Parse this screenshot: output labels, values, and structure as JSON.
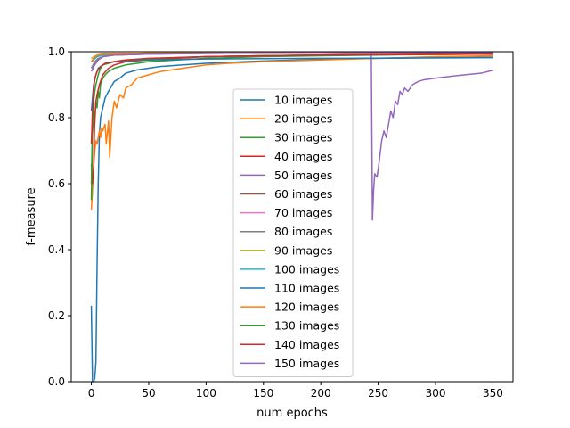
{
  "chart_data": {
    "type": "line",
    "title": "",
    "xlabel": "num epochs",
    "ylabel": "f-measure",
    "xlim": [
      -17.5,
      367.5
    ],
    "ylim": [
      0,
      1
    ],
    "xticks": [
      0,
      50,
      100,
      150,
      200,
      250,
      300,
      350
    ],
    "yticks": [
      0.0,
      0.2,
      0.4,
      0.6,
      0.8,
      1.0
    ],
    "xtick_labels": [
      "0",
      "50",
      "100",
      "150",
      "200",
      "250",
      "300",
      "350"
    ],
    "ytick_labels": [
      "0.0",
      "0.2",
      "0.4",
      "0.6",
      "0.8",
      "1.0"
    ],
    "grid": false,
    "legend_position": "center",
    "series": [
      {
        "name": "10 images",
        "color": "#1f77b4",
        "points": [
          [
            0,
            0.23
          ],
          [
            1,
            0.0
          ],
          [
            2,
            0.0
          ],
          [
            3,
            0.01
          ],
          [
            4,
            0.06
          ],
          [
            5,
            0.35
          ],
          [
            6,
            0.6
          ],
          [
            7,
            0.75
          ],
          [
            8,
            0.8
          ],
          [
            10,
            0.83
          ],
          [
            12,
            0.86
          ],
          [
            15,
            0.88
          ],
          [
            20,
            0.91
          ],
          [
            25,
            0.92
          ],
          [
            30,
            0.935
          ],
          [
            40,
            0.945
          ],
          [
            50,
            0.95
          ],
          [
            60,
            0.955
          ],
          [
            80,
            0.96
          ],
          [
            100,
            0.965
          ],
          [
            150,
            0.972
          ],
          [
            200,
            0.977
          ],
          [
            250,
            0.98
          ],
          [
            300,
            0.982
          ],
          [
            350,
            0.983
          ]
        ]
      },
      {
        "name": "20 images",
        "color": "#ff7f0e",
        "points": [
          [
            0,
            0.52
          ],
          [
            1,
            0.58
          ],
          [
            2,
            0.65
          ],
          [
            3,
            0.7
          ],
          [
            4,
            0.73
          ],
          [
            5,
            0.72
          ],
          [
            6,
            0.74
          ],
          [
            7,
            0.76
          ],
          [
            8,
            0.74
          ],
          [
            9,
            0.77
          ],
          [
            10,
            0.76
          ],
          [
            12,
            0.78
          ],
          [
            13,
            0.72
          ],
          [
            15,
            0.79
          ],
          [
            16,
            0.68
          ],
          [
            18,
            0.8
          ],
          [
            20,
            0.85
          ],
          [
            22,
            0.83
          ],
          [
            25,
            0.87
          ],
          [
            28,
            0.86
          ],
          [
            30,
            0.89
          ],
          [
            35,
            0.9
          ],
          [
            40,
            0.92
          ],
          [
            50,
            0.93
          ],
          [
            60,
            0.94
          ],
          [
            70,
            0.945
          ],
          [
            80,
            0.95
          ],
          [
            100,
            0.96
          ],
          [
            120,
            0.965
          ],
          [
            150,
            0.97
          ],
          [
            200,
            0.975
          ],
          [
            250,
            0.98
          ],
          [
            300,
            0.985
          ],
          [
            350,
            0.988
          ]
        ]
      },
      {
        "name": "30 images",
        "color": "#2ca02c",
        "points": [
          [
            0,
            0.55
          ],
          [
            1,
            0.75
          ],
          [
            2,
            0.82
          ],
          [
            3,
            0.78
          ],
          [
            4,
            0.85
          ],
          [
            5,
            0.83
          ],
          [
            6,
            0.88
          ],
          [
            7,
            0.86
          ],
          [
            8,
            0.9
          ],
          [
            10,
            0.92
          ],
          [
            12,
            0.93
          ],
          [
            15,
            0.94
          ],
          [
            20,
            0.95
          ],
          [
            25,
            0.955
          ],
          [
            30,
            0.96
          ],
          [
            40,
            0.965
          ],
          [
            50,
            0.97
          ],
          [
            75,
            0.975
          ],
          [
            100,
            0.98
          ],
          [
            150,
            0.985
          ],
          [
            200,
            0.988
          ],
          [
            250,
            0.99
          ],
          [
            300,
            0.992
          ],
          [
            350,
            0.993
          ]
        ]
      },
      {
        "name": "40 images",
        "color": "#d62728",
        "points": [
          [
            0,
            0.66
          ],
          [
            1,
            0.6
          ],
          [
            2,
            0.65
          ],
          [
            3,
            0.8
          ],
          [
            4,
            0.85
          ],
          [
            5,
            0.87
          ],
          [
            7,
            0.9
          ],
          [
            10,
            0.93
          ],
          [
            15,
            0.95
          ],
          [
            20,
            0.96
          ],
          [
            30,
            0.97
          ],
          [
            50,
            0.975
          ],
          [
            75,
            0.98
          ],
          [
            100,
            0.985
          ],
          [
            150,
            0.988
          ],
          [
            200,
            0.99
          ],
          [
            300,
            0.993
          ],
          [
            350,
            0.994
          ]
        ]
      },
      {
        "name": "50 images",
        "color": "#9467bd",
        "points": [
          [
            0,
            0.95
          ],
          [
            5,
            0.975
          ],
          [
            10,
            0.985
          ],
          [
            20,
            0.99
          ],
          [
            50,
            0.993
          ],
          [
            100,
            0.995
          ],
          [
            150,
            0.996
          ],
          [
            200,
            0.997
          ],
          [
            244,
            0.997
          ],
          [
            245,
            0.49
          ],
          [
            246,
            0.58
          ],
          [
            247,
            0.63
          ],
          [
            249,
            0.62
          ],
          [
            251,
            0.67
          ],
          [
            253,
            0.73
          ],
          [
            255,
            0.76
          ],
          [
            257,
            0.74
          ],
          [
            259,
            0.78
          ],
          [
            261,
            0.82
          ],
          [
            263,
            0.8
          ],
          [
            265,
            0.85
          ],
          [
            267,
            0.84
          ],
          [
            269,
            0.88
          ],
          [
            271,
            0.87
          ],
          [
            273,
            0.89
          ],
          [
            276,
            0.88
          ],
          [
            280,
            0.9
          ],
          [
            285,
            0.91
          ],
          [
            290,
            0.915
          ],
          [
            300,
            0.92
          ],
          [
            320,
            0.928
          ],
          [
            340,
            0.935
          ],
          [
            350,
            0.944
          ]
        ]
      },
      {
        "name": "60 images",
        "color": "#8c564b",
        "points": [
          [
            0,
            0.97
          ],
          [
            5,
            0.985
          ],
          [
            10,
            0.99
          ],
          [
            50,
            0.994
          ],
          [
            100,
            0.996
          ],
          [
            200,
            0.997
          ],
          [
            350,
            0.998
          ]
        ]
      },
      {
        "name": "70 images",
        "color": "#e377c2",
        "points": [
          [
            0,
            0.98
          ],
          [
            5,
            0.99
          ],
          [
            10,
            0.993
          ],
          [
            50,
            0.996
          ],
          [
            100,
            0.997
          ],
          [
            200,
            0.998
          ],
          [
            350,
            0.998
          ]
        ]
      },
      {
        "name": "80 images",
        "color": "#7f7f7f",
        "points": [
          [
            0,
            0.95
          ],
          [
            3,
            0.97
          ],
          [
            6,
            0.98
          ],
          [
            10,
            0.985
          ],
          [
            20,
            0.99
          ],
          [
            50,
            0.993
          ],
          [
            100,
            0.995
          ],
          [
            200,
            0.996
          ],
          [
            350,
            0.997
          ]
        ]
      },
      {
        "name": "90 images",
        "color": "#bcbd22",
        "points": [
          [
            0,
            0.98
          ],
          [
            5,
            0.99
          ],
          [
            10,
            0.993
          ],
          [
            50,
            0.996
          ],
          [
            100,
            0.997
          ],
          [
            200,
            0.998
          ],
          [
            350,
            0.999
          ]
        ]
      },
      {
        "name": "100 images",
        "color": "#17becf",
        "points": [
          [
            0,
            0.97
          ],
          [
            5,
            0.985
          ],
          [
            10,
            0.99
          ],
          [
            50,
            0.994
          ],
          [
            100,
            0.996
          ],
          [
            200,
            0.997
          ],
          [
            350,
            0.998
          ]
        ]
      },
      {
        "name": "110 images",
        "color": "#1f77b4",
        "points": [
          [
            0,
            0.82
          ],
          [
            2,
            0.9
          ],
          [
            4,
            0.93
          ],
          [
            6,
            0.95
          ],
          [
            10,
            0.96
          ],
          [
            20,
            0.97
          ],
          [
            50,
            0.975
          ],
          [
            100,
            0.978
          ],
          [
            200,
            0.98
          ],
          [
            350,
            0.982
          ]
        ]
      },
      {
        "name": "120 images",
        "color": "#ff7f0e",
        "points": [
          [
            0,
            0.97
          ],
          [
            3,
            0.985
          ],
          [
            6,
            0.99
          ],
          [
            10,
            0.993
          ],
          [
            50,
            0.995
          ],
          [
            100,
            0.996
          ],
          [
            200,
            0.997
          ],
          [
            350,
            0.998
          ]
        ]
      },
      {
        "name": "130 images",
        "color": "#2ca02c",
        "points": [
          [
            0,
            0.6
          ],
          [
            1,
            0.78
          ],
          [
            2,
            0.85
          ],
          [
            3,
            0.88
          ],
          [
            4,
            0.9
          ],
          [
            6,
            0.93
          ],
          [
            8,
            0.95
          ],
          [
            10,
            0.96
          ],
          [
            15,
            0.965
          ],
          [
            20,
            0.97
          ],
          [
            30,
            0.975
          ],
          [
            50,
            0.978
          ],
          [
            75,
            0.982
          ],
          [
            100,
            0.985
          ],
          [
            150,
            0.988
          ],
          [
            200,
            0.99
          ],
          [
            300,
            0.992
          ],
          [
            350,
            0.993
          ]
        ]
      },
      {
        "name": "140 images",
        "color": "#d62728",
        "points": [
          [
            0,
            0.72
          ],
          [
            1,
            0.82
          ],
          [
            2,
            0.88
          ],
          [
            3,
            0.92
          ],
          [
            5,
            0.94
          ],
          [
            8,
            0.955
          ],
          [
            12,
            0.965
          ],
          [
            20,
            0.97
          ],
          [
            30,
            0.975
          ],
          [
            50,
            0.98
          ],
          [
            100,
            0.985
          ],
          [
            150,
            0.988
          ],
          [
            200,
            0.99
          ],
          [
            300,
            0.992
          ],
          [
            350,
            0.993
          ]
        ]
      },
      {
        "name": "150 images",
        "color": "#9467bd",
        "points": [
          [
            0,
            0.94
          ],
          [
            3,
            0.96
          ],
          [
            6,
            0.975
          ],
          [
            10,
            0.985
          ],
          [
            20,
            0.99
          ],
          [
            50,
            0.993
          ],
          [
            100,
            0.995
          ],
          [
            200,
            0.996
          ],
          [
            350,
            0.997
          ]
        ]
      }
    ]
  }
}
